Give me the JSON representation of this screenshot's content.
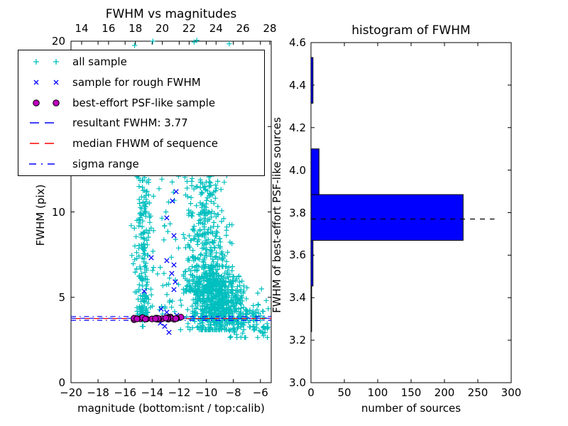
{
  "figure": {
    "background": "#ffffff"
  },
  "left_plot": {
    "title": "FWHM vs magnitudes",
    "xlabel": "magnitude (bottom:isnt / top:calib)",
    "ylabel": "FWHM (pix)",
    "bottom_tick_labels": [
      "−20",
      "−18",
      "−16",
      "−14",
      "−12",
      "−10",
      "−8",
      "−6"
    ],
    "top_tick_labels": [
      "14",
      "16",
      "18",
      "20",
      "22",
      "24",
      "26",
      "28"
    ],
    "y_tick_labels": [
      "0",
      "5",
      "10",
      "15",
      "20"
    ]
  },
  "right_plot": {
    "title": "histogram of FWHM",
    "xlabel": "number of sources",
    "ylabel": "FWHM of best-effort PSF-like sources",
    "x_tick_labels": [
      "0",
      "50",
      "100",
      "150",
      "200",
      "250",
      "300"
    ],
    "y_tick_labels": [
      "3.0",
      "3.2",
      "3.4",
      "3.6",
      "3.8",
      "4.0",
      "4.2",
      "4.4",
      "4.6"
    ]
  },
  "legend": {
    "items": [
      {
        "marker": "cyan-plus",
        "label": "all sample"
      },
      {
        "marker": "blue-cross",
        "label": "sample for rough FWHM"
      },
      {
        "marker": "magenta-circle",
        "label": "best-effort PSF-like sample"
      },
      {
        "marker": "blue-dashed-line",
        "label": "resultant FWHM: 3.77"
      },
      {
        "marker": "red-dashed-line",
        "label": "median FHWM of sequence"
      },
      {
        "marker": "blue-dashdot-line",
        "label": "sigma range"
      }
    ]
  },
  "colors": {
    "cyan": "#00BFBF",
    "blue": "#0000FF",
    "magenta": "#BF00BF",
    "red": "#FF0000",
    "black": "#000000",
    "hist_fill": "#0000FF"
  },
  "chart_data": [
    {
      "type": "scatter",
      "title": "FWHM vs magnitudes",
      "x_axis": {
        "label": "magnitude (isnt)",
        "lim": [
          -20,
          -5.2
        ],
        "ticks": [
          -20,
          -18,
          -16,
          -14,
          -12,
          -10,
          -8,
          -6
        ]
      },
      "top_axis": {
        "label": "magnitude (calib)",
        "lim": [
          13.2,
          28.1
        ],
        "ticks": [
          14,
          16,
          18,
          20,
          22,
          24,
          26,
          28
        ]
      },
      "y_axis": {
        "label": "FWHM (pix)",
        "lim": [
          0,
          20
        ],
        "ticks": [
          0,
          5,
          10,
          15,
          20
        ]
      },
      "hlines": [
        {
          "name": "resultant FWHM",
          "value": 3.77,
          "style": "dashed",
          "color": "#0000FF"
        },
        {
          "name": "median FHWM of sequence",
          "value": 3.76,
          "style": "dashed",
          "color": "#FF0000"
        },
        {
          "name": "sigma range upper",
          "value": 3.875,
          "style": "dashdot",
          "color": "#0000FF"
        },
        {
          "name": "sigma range lower",
          "value": 3.655,
          "style": "dashdot",
          "color": "#0000FF"
        }
      ],
      "seed": 7,
      "series": [
        {
          "name": "all sample",
          "marker": "plus",
          "color": "#00BFBF",
          "clusters": [
            {
              "n": 195,
              "x": {
                "d": "n",
                "m": -14.62,
                "s": 0.34,
                "lo": -15.55,
                "hi": -13.9
              },
              "y": {
                "d": "p",
                "lo": 3.95,
                "hi": 12.7,
                "e": 1.25
              }
            },
            {
              "n": 26,
              "x": {
                "d": "n",
                "m": -14.7,
                "s": 0.3,
                "lo": -15.4,
                "hi": -14.0
              },
              "y": {
                "d": "n",
                "m": 3.95,
                "s": 0.3,
                "lo": 3.3,
                "hi": 4.7
              }
            },
            {
              "n": 34,
              "x": {
                "d": "n",
                "m": -12.85,
                "s": 0.35,
                "lo": -13.6,
                "hi": -12.2
              },
              "y": {
                "d": "p",
                "lo": 4.0,
                "hi": 12.5,
                "e": 1.2
              }
            },
            {
              "n": 430,
              "x": {
                "d": "n",
                "m": -9.95,
                "s": 0.8,
                "lo": -12.05,
                "hi": -8.1
              },
              "y": {
                "d": "p",
                "lo": 5.3,
                "hi": 12.7,
                "e": 1.5
              }
            },
            {
              "n": 640,
              "x": {
                "d": "n",
                "m": -9.3,
                "s": 0.95,
                "lo": -11.9,
                "hi": -6.2
              },
              "y": {
                "d": "n",
                "m": 4.65,
                "s": 1.0,
                "lo": 3.1,
                "hi": 6.8
              }
            },
            {
              "n": 115,
              "x": {
                "d": "u",
                "lo": -8.3,
                "hi": -5.35
              },
              "y": {
                "d": "n",
                "m": 3.7,
                "s": 0.75,
                "lo": 2.65,
                "hi": 5.8
              }
            }
          ],
          "points": [
            [
              -15.3,
              19.75
            ],
            [
              -13.95,
              20.0
            ],
            [
              -10.9,
              19.95
            ],
            [
              -10.7,
              20.05
            ],
            [
              -8.3,
              19.85
            ]
          ]
        },
        {
          "name": "sample for rough FWHM",
          "marker": "cross",
          "color": "#0000FF",
          "points": [
            [
              -12.23,
              11.19
            ],
            [
              -12.5,
              10.64
            ],
            [
              -12.92,
              9.65
            ],
            [
              -12.39,
              8.61
            ],
            [
              -14.07,
              7.32
            ],
            [
              -12.92,
              7.15
            ],
            [
              -12.39,
              6.9
            ],
            [
              -12.55,
              6.4
            ],
            [
              -12.29,
              5.9
            ],
            [
              -12.39,
              5.45
            ],
            [
              -14.59,
              5.36
            ],
            [
              -13.34,
              4.32
            ],
            [
              -12.92,
              4.12
            ],
            [
              -13.4,
              3.49
            ],
            [
              -13.07,
              3.3
            ],
            [
              -12.76,
              2.95
            ],
            [
              -12.55,
              3.7
            ],
            [
              -12.18,
              3.95
            ]
          ]
        },
        {
          "name": "best-effort PSF-like sample",
          "marker": "circle",
          "color": "#BF00BF",
          "clusters": [
            {
              "n": 27,
              "x": {
                "d": "u",
                "lo": -15.35,
                "hi": -11.75
              },
              "y": {
                "d": "n",
                "m": 3.77,
                "s": 0.05,
                "lo": 3.69,
                "hi": 3.86
              }
            }
          ]
        }
      ]
    },
    {
      "type": "bar",
      "orientation": "horizontal",
      "title": "histogram of FWHM",
      "x_axis": {
        "label": "number of sources",
        "lim": [
          0,
          300
        ],
        "ticks": [
          0,
          50,
          100,
          150,
          200,
          250,
          300
        ]
      },
      "y_axis": {
        "label": "FWHM of best-effort PSF-like sources",
        "lim": [
          3.0,
          4.6
        ],
        "ticks": [
          3.0,
          3.2,
          3.4,
          3.6,
          3.8,
          4.0,
          4.2,
          4.4,
          4.6
        ]
      },
      "bin_edges": [
        3.24,
        3.455,
        3.67,
        3.885,
        4.1,
        4.315,
        4.53
      ],
      "counts": [
        1,
        3,
        228,
        12,
        0,
        3
      ],
      "bar_color": "#0000FF",
      "dashed_line": {
        "value": 3.77,
        "x_from": 0,
        "x_to": 275,
        "color": "#000000",
        "style": "dashed"
      }
    }
  ]
}
